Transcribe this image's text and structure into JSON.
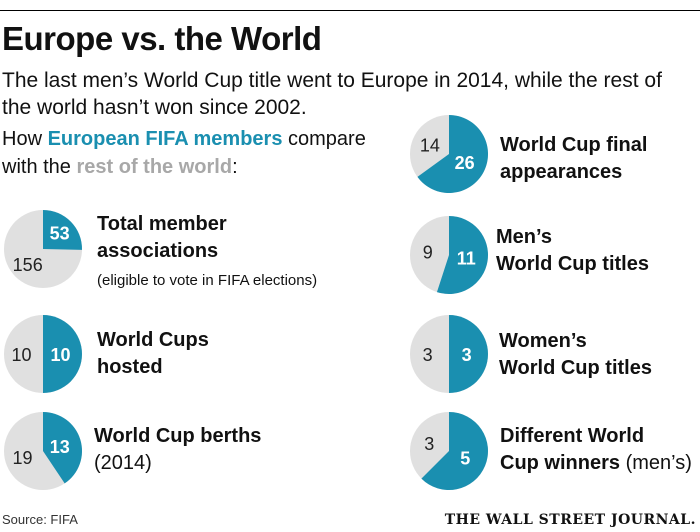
{
  "title": "Europe vs. the World",
  "subtitle": "The last men’s World Cup title went to Europe in 2014, while the rest of the world hasn’t won since 2002.",
  "intro": {
    "prefix": "How ",
    "europe": "European FIFA members",
    "middle": " compare with the ",
    "rest": "rest of the world",
    "suffix": ":"
  },
  "colors": {
    "europe": "#1a8fb0",
    "rest": "#e0e0e0",
    "europe_text": "#1a8fb0",
    "rest_text": "#a8a8a8"
  },
  "chart_data": {
    "type": "pie",
    "series_names": [
      "European FIFA members",
      "Rest of the world"
    ],
    "charts": [
      {
        "label_line1": "Total member",
        "label_line2": "associations",
        "note": "(eligible to vote in FIFA elections)",
        "europe": 53,
        "rest": 156
      },
      {
        "label_line1": "World Cups",
        "label_line2": "hosted",
        "europe": 10,
        "rest": 10
      },
      {
        "label_line1": "World Cup berths",
        "label_line2": "(2014)",
        "europe": 13,
        "rest": 19
      },
      {
        "label_line1": "World Cup final",
        "label_line2": "appearances",
        "europe": 26,
        "rest": 14
      },
      {
        "label_line1": "Men’s",
        "label_line2": "World Cup titles",
        "europe": 11,
        "rest": 9
      },
      {
        "label_line1": "Women’s",
        "label_line2": "World Cup titles",
        "europe": 3,
        "rest": 3
      },
      {
        "label_line1": "Different World",
        "label_line2": "Cup winners",
        "label_suffix": " (men’s)",
        "europe": 5,
        "rest": 3
      }
    ]
  },
  "source": "Source: FIFA",
  "masthead": "THE WALL STREET JOURNAL."
}
